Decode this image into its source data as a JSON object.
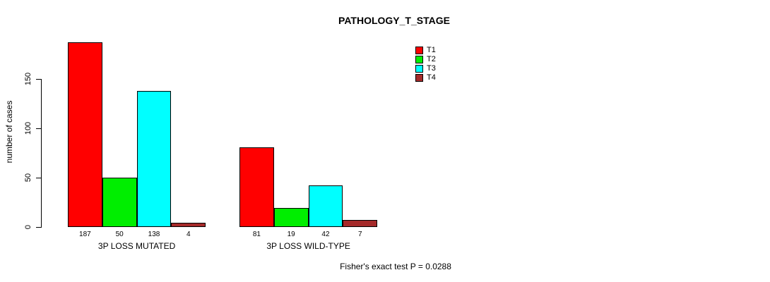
{
  "chart_data": {
    "type": "bar",
    "title": "PATHOLOGY_T_STAGE",
    "ylabel": "number of cases",
    "ylim": [
      0,
      150
    ],
    "yticks": [
      0,
      50,
      100,
      150
    ],
    "grid": false,
    "legend_position": "top-right",
    "categories": [
      "3P LOSS MUTATED",
      "3P LOSS WILD-TYPE"
    ],
    "series": [
      {
        "name": "T1",
        "color": "#ff0000",
        "values": [
          187,
          81
        ]
      },
      {
        "name": "T2",
        "color": "#00ee00",
        "values": [
          50,
          19
        ]
      },
      {
        "name": "T3",
        "color": "#00ffff",
        "values": [
          138,
          42
        ]
      },
      {
        "name": "T4",
        "color": "#a52a2a",
        "values": [
          4,
          7
        ]
      }
    ],
    "footnote": "Fisher's exact test P = 0.0288"
  }
}
